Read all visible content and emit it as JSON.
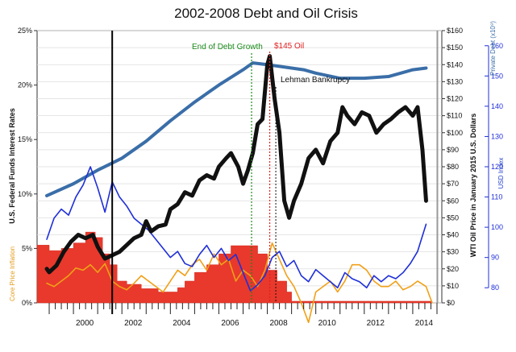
{
  "chart_data": {
    "type": "line",
    "title": "2002-2008 Debt and Oil Crisis",
    "x_axis": {
      "range": [
        1998.5,
        2015.2
      ],
      "ticks": [
        {
          "x": 2000,
          "label": "2000"
        },
        {
          "x": 2002,
          "label": "2002"
        },
        {
          "x": 2004,
          "label": "2004"
        },
        {
          "x": 2006,
          "label": "2006"
        },
        {
          "x": 2008,
          "label": "2008"
        },
        {
          "x": 2010,
          "label": "2010"
        },
        {
          "x": 2012,
          "label": "2012"
        },
        {
          "x": 2014,
          "label": "2014"
        }
      ]
    },
    "left_axis": {
      "label": "U.S. Federal Funds Interest Rates",
      "secondary_label": "Core Price Inflation",
      "range": [
        0,
        25
      ],
      "ticks": [
        "0%",
        "5%",
        "10%",
        "15%",
        "20%",
        "25%"
      ]
    },
    "right_axis_oil": {
      "label": "WTI Oil Price in January 2015 U.S. Dollars",
      "range": [
        0,
        160
      ],
      "ticks": [
        "$0",
        "$10",
        "$20",
        "$30",
        "$40",
        "$50",
        "$60",
        "$70",
        "$80",
        "$90",
        "$100",
        "$110",
        "$120",
        "$130",
        "$140",
        "$150",
        "$160"
      ]
    },
    "right_axis_debt": {
      "label": "Private Debt (x10⁹)"
    },
    "right_axis_usd": {
      "label": "USD Index",
      "range": [
        75,
        165
      ],
      "ticks": [
        "80",
        "90",
        "100",
        "110",
        "120",
        "130",
        "140",
        "150",
        "160"
      ]
    },
    "annotations": {
      "debt_growth_label": "End of Debt Growth",
      "oil_peak_label": "$145 Oil",
      "lehman_label": "Lehman Bankrupcy"
    },
    "markers": {
      "crisis_start_x": 2001.6,
      "debt_growth_end_x": 2007.35,
      "oil_peak_x": 2008.1,
      "lehman_x": 2008.35,
      "right_edge_x": 2014.55
    },
    "series": [
      {
        "name": "WTI Oil Price",
        "axis": "oil",
        "x": [
          1998.9,
          1999.0,
          1999.3,
          1999.6,
          1999.9,
          2000.2,
          2000.5,
          2000.8,
          2001.0,
          2001.3,
          2001.6,
          2001.9,
          2002.2,
          2002.5,
          2002.8,
          2003.0,
          2003.2,
          2003.5,
          2003.8,
          2004.0,
          2004.3,
          2004.6,
          2004.9,
          2005.2,
          2005.5,
          2005.8,
          2006.0,
          2006.3,
          2006.5,
          2006.8,
          2007.0,
          2007.2,
          2007.4,
          2007.6,
          2007.8,
          2008.0,
          2008.1,
          2008.3,
          2008.5,
          2008.7,
          2008.9,
          2009.1,
          2009.4,
          2009.7,
          2010.0,
          2010.3,
          2010.6,
          2010.9,
          2011.1,
          2011.3,
          2011.6,
          2011.9,
          2012.2,
          2012.5,
          2012.8,
          2013.1,
          2013.4,
          2013.7,
          2014.0,
          2014.2,
          2014.4,
          2014.55
        ],
        "y": [
          20,
          18,
          22,
          30,
          36,
          40,
          38,
          40,
          33,
          26,
          28,
          30,
          34,
          38,
          40,
          48,
          42,
          45,
          46,
          55,
          58,
          65,
          63,
          72,
          75,
          73,
          80,
          85,
          88,
          80,
          70,
          78,
          88,
          105,
          108,
          140,
          145,
          120,
          100,
          60,
          50,
          60,
          70,
          85,
          90,
          82,
          95,
          100,
          115,
          110,
          105,
          112,
          110,
          100,
          105,
          108,
          112,
          115,
          110,
          115,
          90,
          60
        ]
      },
      {
        "name": "Private Debt",
        "axis": "oil",
        "x": [
          1998.9,
          2000.0,
          2001.0,
          2002.0,
          2003.0,
          2004.0,
          2005.0,
          2006.0,
          2007.0,
          2007.4,
          2008.0,
          2008.5,
          2009.0,
          2009.5,
          2010.0,
          2011.0,
          2012.0,
          2013.0,
          2014.0,
          2014.55
        ],
        "y": [
          63,
          70,
          78,
          85,
          95,
          107,
          118,
          128,
          137,
          141,
          140,
          139,
          138,
          137,
          135,
          132,
          132,
          133,
          137,
          138
        ]
      },
      {
        "name": "USD Index",
        "axis": "usd",
        "x": [
          1998.9,
          1999.2,
          1999.5,
          1999.8,
          2000.1,
          2000.4,
          2000.7,
          2001.0,
          2001.3,
          2001.6,
          2001.9,
          2002.2,
          2002.5,
          2002.8,
          2003.1,
          2003.4,
          2003.7,
          2004.0,
          2004.3,
          2004.6,
          2004.9,
          2005.2,
          2005.5,
          2005.8,
          2006.1,
          2006.4,
          2006.7,
          2007.0,
          2007.3,
          2007.6,
          2007.9,
          2008.2,
          2008.5,
          2008.8,
          2009.1,
          2009.4,
          2009.7,
          2010.0,
          2010.3,
          2010.6,
          2010.9,
          2011.2,
          2011.5,
          2011.8,
          2012.1,
          2012.4,
          2012.7,
          2013.0,
          2013.3,
          2013.6,
          2013.9,
          2014.2,
          2014.55
        ],
        "y": [
          96,
          103,
          106,
          104,
          110,
          114,
          120,
          113,
          105,
          115,
          110,
          107,
          103,
          101,
          99,
          96,
          93,
          90,
          92,
          88,
          87,
          91,
          94,
          90,
          93,
          89,
          91,
          85,
          79,
          81,
          84,
          90,
          92,
          87,
          89,
          84,
          82,
          86,
          84,
          82,
          80,
          85,
          83,
          82,
          80,
          84,
          82,
          84,
          83,
          85,
          88,
          92,
          101
        ]
      },
      {
        "name": "Core Price Inflation",
        "axis": "rate",
        "x": [
          1998.9,
          1999.2,
          1999.5,
          1999.8,
          2000.1,
          2000.4,
          2000.7,
          2001.0,
          2001.3,
          2001.6,
          2001.9,
          2002.2,
          2002.5,
          2002.8,
          2003.1,
          2003.4,
          2003.7,
          2004.0,
          2004.3,
          2004.6,
          2004.9,
          2005.2,
          2005.5,
          2005.8,
          2006.1,
          2006.4,
          2006.7,
          2007.0,
          2007.3,
          2007.6,
          2007.9,
          2008.2,
          2008.5,
          2008.8,
          2009.1,
          2009.4,
          2009.7,
          2010.0,
          2010.3,
          2010.6,
          2010.9,
          2011.2,
          2011.5,
          2011.8,
          2012.1,
          2012.4,
          2012.7,
          2013.0,
          2013.3,
          2013.6,
          2013.9,
          2014.2,
          2014.55,
          2014.8
        ],
        "y": [
          1.8,
          1.5,
          2.0,
          2.5,
          3.2,
          3.0,
          3.5,
          2.8,
          3.6,
          2.0,
          1.5,
          1.2,
          1.8,
          2.5,
          2.0,
          1.5,
          1.0,
          2.0,
          3.0,
          2.5,
          3.5,
          4.0,
          3.0,
          4.5,
          3.5,
          4.0,
          2.0,
          3.0,
          2.5,
          1.5,
          3.0,
          5.5,
          4.0,
          2.5,
          1.5,
          0.0,
          -1.8,
          1.0,
          1.5,
          2.0,
          1.0,
          2.0,
          3.5,
          3.5,
          3.0,
          2.0,
          1.5,
          1.5,
          2.0,
          1.2,
          1.5,
          2.0,
          1.5,
          0.0
        ]
      },
      {
        "name": "U.S. Federal Funds Interest Rates",
        "axis": "rate",
        "type": "area",
        "x": [
          1998.5,
          1999.0,
          1999.5,
          2000.0,
          2000.5,
          2000.9,
          2001.2,
          2001.5,
          2001.8,
          2002.2,
          2002.8,
          2003.5,
          2004.0,
          2004.3,
          2004.6,
          2005.0,
          2005.5,
          2006.0,
          2006.5,
          2007.3,
          2007.6,
          2008.0,
          2008.4,
          2008.8,
          2009.0,
          2014.8
        ],
        "y": [
          5.3,
          4.8,
          5.0,
          5.5,
          6.5,
          6.0,
          4.5,
          3.5,
          2.0,
          1.7,
          1.3,
          1.0,
          1.0,
          1.4,
          2.0,
          2.8,
          3.5,
          4.5,
          5.25,
          5.25,
          4.5,
          3.0,
          2.0,
          1.0,
          0.15,
          0.12
        ]
      }
    ]
  }
}
